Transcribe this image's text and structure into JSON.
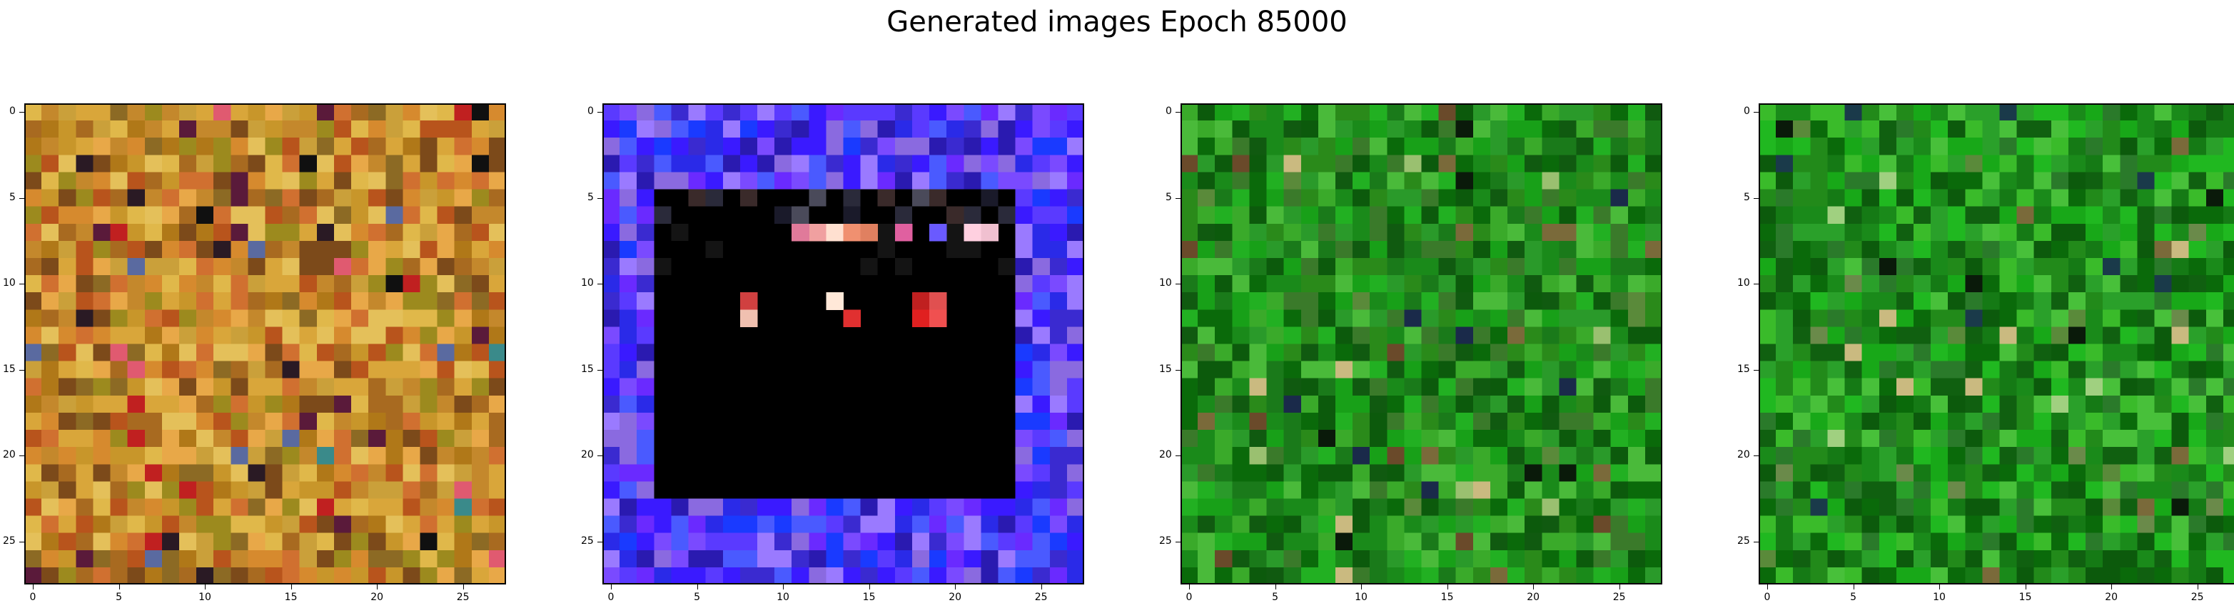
{
  "figure": {
    "title": "Generated images Epoch 85000",
    "grid_size": 28,
    "ticks": [
      "0",
      "5",
      "10",
      "15",
      "20",
      "25"
    ],
    "tick_values": [
      0,
      5,
      10,
      15,
      20,
      25
    ]
  },
  "panels": [
    {
      "id": "sample-1",
      "palette": "warm-noise",
      "colors": [
        "#c8962a",
        "#d9a63a",
        "#b07818",
        "#e0b84a",
        "#a86a20",
        "#c4882c",
        "#d68a2e",
        "#9c8a1e",
        "#e4c05a",
        "#b8541c",
        "#caa03a",
        "#8c6a24",
        "#d07030",
        "#e8a848",
        "#7c4a1a"
      ],
      "accents": [
        "#2a1a24",
        "#5a1a3a",
        "#e05a70",
        "#5a6aa0",
        "#101010",
        "#c02020",
        "#3a8a8a"
      ]
    },
    {
      "id": "sample-2",
      "palette": "blue-border-dark-center",
      "border_colors": [
        "#3a1aff",
        "#2a2ae8",
        "#5a3aff",
        "#1a3aff",
        "#7a4aff",
        "#4a5aff",
        "#8a6ae0",
        "#3a2ad0",
        "#6a2aff",
        "#9a7aff",
        "#2a1ab0"
      ],
      "highlights": [
        "#f0a0a0",
        "#e07070",
        "#ffe0d0",
        "#d04040",
        "#f05050",
        "#c07070"
      ]
    },
    {
      "id": "sample-3",
      "palette": "green-noise",
      "colors": [
        "#1a8a1a",
        "#2a9a2a",
        "#0a6a0a",
        "#3aaa2a",
        "#1a7a1a",
        "#0c5a0c",
        "#4aba3a",
        "#2a8a1a",
        "#18a018",
        "#105a10",
        "#3a7a2a",
        "#22b022"
      ],
      "accents": [
        "#0a1a0a",
        "#5a8a3a",
        "#9ac070",
        "#7a6a3a",
        "#1a2a4a",
        "#6a4a2a",
        "#caba80"
      ]
    },
    {
      "id": "sample-4",
      "palette": "green-noise",
      "colors": [
        "#1a8a1a",
        "#2aa02a",
        "#0a6a0a",
        "#3abb2a",
        "#157a15",
        "#0c5a0c",
        "#48c03a",
        "#228a1a",
        "#18a818",
        "#106010",
        "#2a7a2a",
        "#20b820"
      ],
      "accents": [
        "#0a1a0a",
        "#5a8a3a",
        "#a0d080",
        "#7a6a3a",
        "#1a3a4a",
        "#6a8a4a",
        "#caba80"
      ]
    }
  ]
}
